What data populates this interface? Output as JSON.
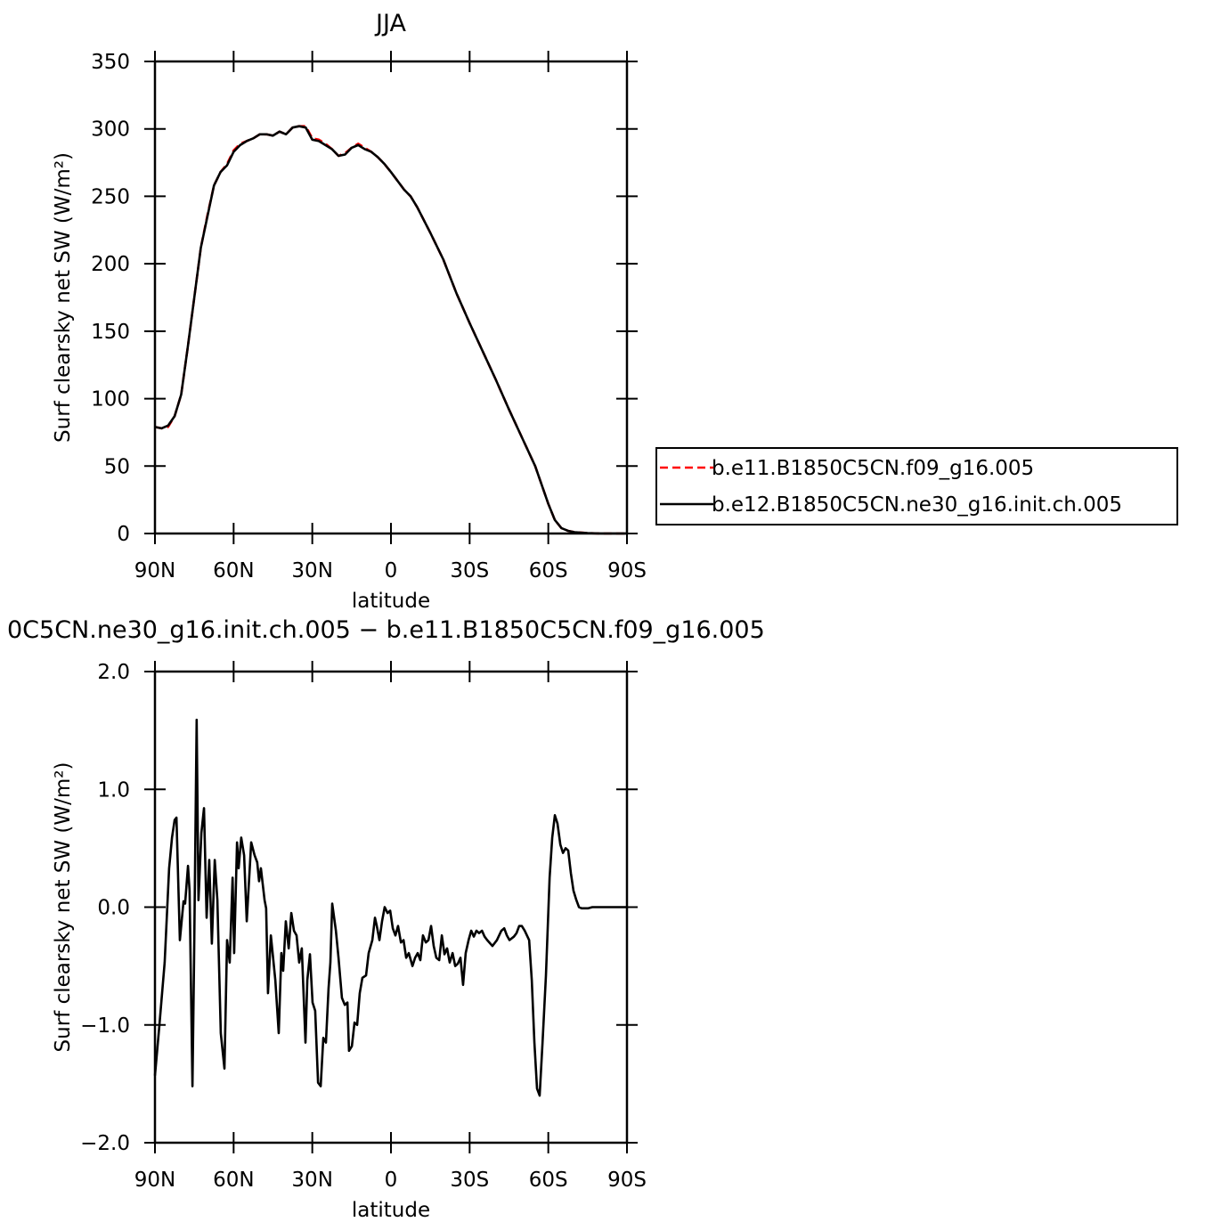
{
  "chart_data": [
    {
      "type": "line",
      "title": "JJA",
      "xlabel": "latitude",
      "ylabel": "Surf clearsky net SW (W/m²)",
      "x": [
        90,
        87.5,
        85,
        82.5,
        80,
        77.5,
        75,
        72.5,
        70,
        67.5,
        65,
        62.5,
        60,
        57.5,
        55,
        52.5,
        50,
        47.5,
        45,
        42.5,
        40,
        37.5,
        35,
        32.5,
        30,
        27.5,
        25,
        22.5,
        20,
        17.5,
        15,
        12.5,
        10,
        7.5,
        5,
        2.5,
        0,
        -5,
        -7.5,
        -10,
        -15,
        -20,
        -25,
        -30,
        -35,
        -40,
        -45,
        -50,
        -55,
        -60,
        -62.5,
        -65,
        -67.5,
        -70,
        -75,
        -80,
        -90
      ],
      "series": [
        {
          "name": "b.e11.B1850C5CN.f09_g16.005",
          "color": "#ff0000",
          "dash": "dashed",
          "values": [
            79,
            78,
            79,
            87,
            103,
            138,
            175,
            212,
            236,
            258,
            268,
            274,
            284,
            289,
            291,
            293,
            296,
            296,
            295,
            298,
            296,
            301,
            302,
            302,
            293,
            292,
            289,
            285,
            280,
            282,
            286,
            289,
            286,
            283,
            279,
            274,
            268,
            255,
            250,
            242,
            223,
            203,
            178,
            156,
            135,
            114,
            92,
            71,
            50,
            22,
            10,
            4,
            2,
            1,
            0.3,
            0,
            0
          ]
        },
        {
          "name": "b.e12.B1850C5CN.ne30_g16.init.ch.005",
          "color": "#000000",
          "dash": "solid",
          "values": [
            79,
            78,
            80,
            87,
            103,
            138,
            175,
            212,
            235,
            258,
            268,
            273,
            283,
            288,
            291,
            293,
            296,
            296,
            295,
            298,
            296,
            301,
            302,
            301,
            292,
            291,
            288,
            285,
            280,
            281,
            286,
            288,
            285,
            283,
            279,
            274,
            268,
            255,
            250,
            242,
            223,
            203,
            178,
            156,
            135,
            114,
            92,
            71,
            50,
            22,
            10,
            4,
            2,
            1,
            0.3,
            0,
            0
          ]
        }
      ],
      "xlim": [
        90,
        -90
      ],
      "xticks": [
        {
          "value": 90,
          "label": "90N"
        },
        {
          "value": 60,
          "label": "60N"
        },
        {
          "value": 30,
          "label": "30N"
        },
        0,
        {
          "value": -30,
          "label": "30S"
        },
        {
          "value": -60,
          "label": "60S"
        },
        {
          "value": -90,
          "label": "90S"
        }
      ],
      "ylim": [
        0,
        350
      ],
      "yticks": [
        0,
        50,
        100,
        150,
        200,
        250,
        300,
        350
      ],
      "legend": "right"
    },
    {
      "type": "line",
      "title": "0C5CN.ne30_g16.init.ch.005 − b.e11.B1850C5CN.f09_g16.005",
      "xlabel": "latitude",
      "ylabel": "Surf clearsky net SW (W/m²)",
      "x": [
        90,
        88.3,
        86.3,
        84.6,
        83.5,
        82.5,
        81.8,
        80.5,
        79.1,
        78.5,
        77.4,
        76.8,
        75.7,
        75.1,
        74.1,
        73.4,
        72.3,
        71.3,
        70.3,
        69.3,
        68.3,
        67.2,
        66.2,
        64.9,
        63.5,
        62.5,
        61.5,
        60.4,
        59.8,
        58.7,
        58.1,
        57.1,
        56.0,
        55.0,
        53.3,
        52.0,
        51.0,
        50.3,
        49.6,
        48.2,
        47.6,
        46.9,
        45.8,
        44.1,
        42.8,
        41.8,
        41.1,
        40.1,
        39.0,
        38.0,
        37.0,
        36.0,
        35.0,
        34.0,
        32.6,
        31.9,
        30.9,
        29.9,
        28.9,
        27.8,
        26.8,
        25.8,
        24.8,
        23.8,
        23.1,
        22.4,
        21.0,
        20.0,
        18.7,
        17.6,
        16.6,
        16.0,
        14.9,
        13.9,
        12.9,
        11.9,
        10.9,
        9.5,
        8.5,
        7.1,
        6.1,
        5.4,
        4.4,
        3.4,
        2.4,
        1.3,
        0.3,
        -0.7,
        -1.7,
        -2.7,
        -3.8,
        -4.8,
        -5.8,
        -6.8,
        -8.2,
        -9.2,
        -10.2,
        -11.2,
        -12.2,
        -13.3,
        -14.3,
        -15.3,
        -16.3,
        -17.3,
        -18.4,
        -19.4,
        -20.4,
        -21.4,
        -22.4,
        -23.5,
        -24.5,
        -25.5,
        -26.5,
        -27.5,
        -28.5,
        -29.6,
        -30.6,
        -31.6,
        -32.6,
        -33.6,
        -34.7,
        -35.7,
        -36.7,
        -38.7,
        -40.4,
        -42.1,
        -43.2,
        -44.2,
        -45.2,
        -46.9,
        -47.9,
        -48.9,
        -49.9,
        -51.0,
        -52.7,
        -53.7,
        -54.7,
        -55.7,
        -56.7,
        -57.8,
        -59.1,
        -60.5,
        -61.5,
        -62.5,
        -63.5,
        -64.6,
        -65.6,
        -66.6,
        -67.6,
        -68.6,
        -69.6,
        -70.7,
        -71.7,
        -72.7,
        -75.1,
        -76.8,
        -90
      ],
      "values": [
        -1.43,
        -1.0,
        -0.47,
        0.33,
        0.59,
        0.74,
        0.76,
        -0.28,
        0.05,
        0.03,
        0.35,
        0.14,
        -1.52,
        -0.47,
        1.59,
        0.06,
        0.63,
        0.84,
        -0.09,
        0.4,
        -0.31,
        0.4,
        0.06,
        -1.07,
        -1.37,
        -0.28,
        -0.47,
        0.25,
        -0.39,
        0.55,
        0.33,
        0.59,
        0.44,
        -0.12,
        0.55,
        0.44,
        0.38,
        0.22,
        0.33,
        0.06,
        -0.01,
        -0.73,
        -0.24,
        -0.62,
        -1.07,
        -0.39,
        -0.54,
        -0.12,
        -0.35,
        -0.05,
        -0.2,
        -0.24,
        -0.47,
        -0.35,
        -1.15,
        -0.62,
        -0.4,
        -0.81,
        -0.88,
        -1.49,
        -1.52,
        -1.11,
        -1.15,
        -0.69,
        -0.47,
        0.03,
        -0.2,
        -0.43,
        -0.77,
        -0.83,
        -0.81,
        -1.22,
        -1.18,
        -0.98,
        -1.0,
        -0.73,
        -0.6,
        -0.58,
        -0.39,
        -0.28,
        -0.09,
        -0.16,
        -0.28,
        -0.12,
        0.0,
        -0.05,
        -0.03,
        -0.18,
        -0.24,
        -0.16,
        -0.3,
        -0.28,
        -0.43,
        -0.39,
        -0.5,
        -0.43,
        -0.39,
        -0.45,
        -0.24,
        -0.3,
        -0.28,
        -0.16,
        -0.33,
        -0.43,
        -0.45,
        -0.24,
        -0.4,
        -0.35,
        -0.47,
        -0.39,
        -0.5,
        -0.48,
        -0.43,
        -0.66,
        -0.39,
        -0.28,
        -0.2,
        -0.25,
        -0.2,
        -0.22,
        -0.2,
        -0.25,
        -0.28,
        -0.33,
        -0.28,
        -0.2,
        -0.18,
        -0.24,
        -0.28,
        -0.25,
        -0.22,
        -0.16,
        -0.16,
        -0.2,
        -0.28,
        -0.62,
        -1.15,
        -1.54,
        -1.6,
        -1.15,
        -0.58,
        0.25,
        0.59,
        0.78,
        0.71,
        0.53,
        0.46,
        0.5,
        0.48,
        0.29,
        0.14,
        0.06,
        0.0,
        -0.01,
        -0.01,
        0.0,
        0.0
      ],
      "color": "#000000",
      "xlim": [
        90,
        -90
      ],
      "xticks": [
        {
          "value": 90,
          "label": "90N"
        },
        {
          "value": 60,
          "label": "60N"
        },
        {
          "value": 30,
          "label": "30N"
        },
        0,
        {
          "value": -30,
          "label": "30S"
        },
        {
          "value": -60,
          "label": "60S"
        },
        {
          "value": -90,
          "label": "90S"
        }
      ],
      "ylim": [
        -2,
        2
      ],
      "yticks": [
        {
          "value": -2,
          "label": "−2.0"
        },
        {
          "value": -1,
          "label": "−1.0"
        },
        {
          "value": 0,
          "label": "0.0"
        },
        {
          "value": 1,
          "label": "1.0"
        },
        {
          "value": 2,
          "label": "2.0"
        }
      ]
    }
  ]
}
